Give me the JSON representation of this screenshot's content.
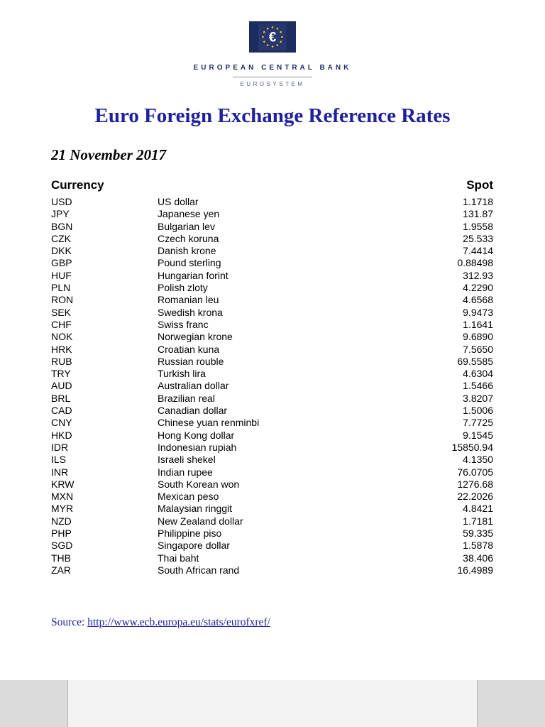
{
  "header": {
    "bank_name": "EUROPEAN CENTRAL BANK",
    "eurosystem": "EUROSYSTEM",
    "title": "Euro Foreign Exchange Reference Rates",
    "date": "21 November 2017"
  },
  "table": {
    "headers": {
      "currency": "Currency",
      "spot": "Spot"
    },
    "rows": [
      {
        "code": "USD",
        "name": "US dollar",
        "spot": "1.1718"
      },
      {
        "code": "JPY",
        "name": "Japanese yen",
        "spot": "131.87"
      },
      {
        "code": "BGN",
        "name": "Bulgarian lev",
        "spot": "1.9558"
      },
      {
        "code": "CZK",
        "name": "Czech koruna",
        "spot": "25.533"
      },
      {
        "code": "DKK",
        "name": "Danish krone",
        "spot": "7.4414"
      },
      {
        "code": "GBP",
        "name": "Pound sterling",
        "spot": "0.88498"
      },
      {
        "code": "HUF",
        "name": "Hungarian forint",
        "spot": "312.93"
      },
      {
        "code": "PLN",
        "name": "Polish zloty",
        "spot": "4.2290"
      },
      {
        "code": "RON",
        "name": "Romanian leu",
        "spot": "4.6568"
      },
      {
        "code": "SEK",
        "name": "Swedish krona",
        "spot": "9.9473"
      },
      {
        "code": "CHF",
        "name": "Swiss franc",
        "spot": "1.1641"
      },
      {
        "code": "NOK",
        "name": "Norwegian krone",
        "spot": "9.6890"
      },
      {
        "code": "HRK",
        "name": "Croatian kuna",
        "spot": "7.5650"
      },
      {
        "code": "RUB",
        "name": "Russian rouble",
        "spot": "69.5585"
      },
      {
        "code": "TRY",
        "name": "Turkish lira",
        "spot": "4.6304"
      },
      {
        "code": "AUD",
        "name": "Australian dollar",
        "spot": "1.5466"
      },
      {
        "code": "BRL",
        "name": "Brazilian real",
        "spot": "3.8207"
      },
      {
        "code": "CAD",
        "name": "Canadian dollar",
        "spot": "1.5006"
      },
      {
        "code": "CNY",
        "name": "Chinese yuan renminbi",
        "spot": "7.7725"
      },
      {
        "code": "HKD",
        "name": "Hong Kong dollar",
        "spot": "9.1545"
      },
      {
        "code": "IDR",
        "name": "Indonesian rupiah",
        "spot": "15850.94"
      },
      {
        "code": "ILS",
        "name": "Israeli shekel",
        "spot": "4.1350"
      },
      {
        "code": "INR",
        "name": "Indian rupee",
        "spot": "76.0705"
      },
      {
        "code": "KRW",
        "name": "South Korean won",
        "spot": "1276.68"
      },
      {
        "code": "MXN",
        "name": "Mexican peso",
        "spot": "22.2026"
      },
      {
        "code": "MYR",
        "name": "Malaysian ringgit",
        "spot": "4.8421"
      },
      {
        "code": "NZD",
        "name": "New Zealand dollar",
        "spot": "1.7181"
      },
      {
        "code": "PHP",
        "name": "Philippine piso",
        "spot": "59.335"
      },
      {
        "code": "SGD",
        "name": "Singapore dollar",
        "spot": "1.5878"
      },
      {
        "code": "THB",
        "name": "Thai baht",
        "spot": "38.406"
      },
      {
        "code": "ZAR",
        "name": "South African rand",
        "spot": "16.4989"
      }
    ]
  },
  "footer": {
    "source_label": "Source: ",
    "source_url": "http://www.ecb.europa.eu/stats/eurofxref/"
  },
  "colors": {
    "title_blue": "#1f219c",
    "logo_navy": "#1d2c5f",
    "link_blue": "#1f219c",
    "star_yellow": "#f0c419"
  }
}
